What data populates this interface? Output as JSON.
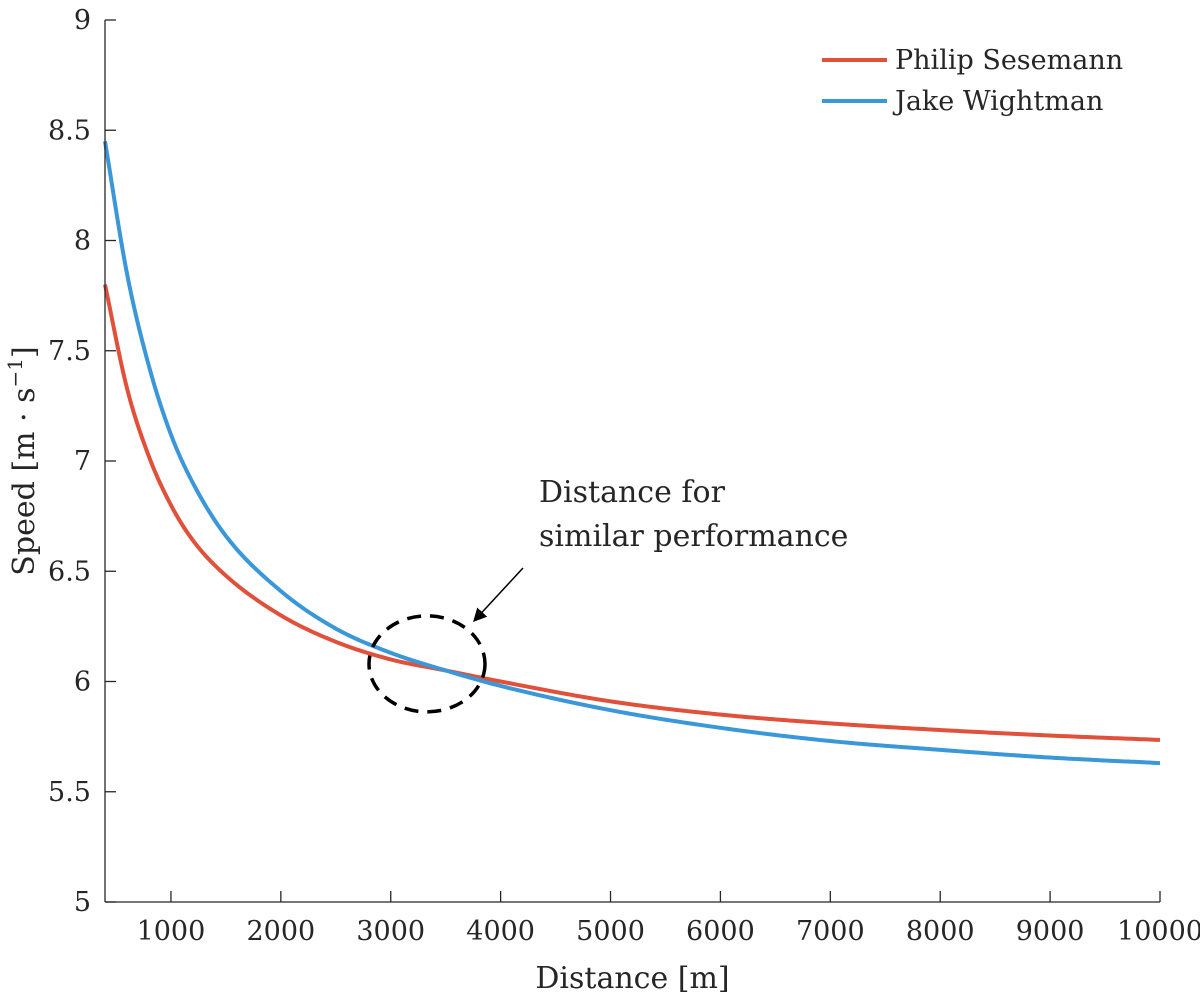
{
  "chart_data": {
    "type": "line",
    "title": "",
    "xlabel": "Distance [m]",
    "ylabel_main": "Speed [m · s",
    "ylabel_sup": "−1",
    "ylabel_close": "]",
    "xlim": [
      400,
      10000
    ],
    "ylim": [
      5,
      9
    ],
    "xticks": [
      1000,
      2000,
      3000,
      4000,
      5000,
      6000,
      7000,
      8000,
      9000,
      10000
    ],
    "yticks": [
      5,
      5.5,
      6,
      6.5,
      7,
      7.5,
      8,
      8.5,
      9
    ],
    "ytick_labels": [
      "5",
      "5.5",
      "6",
      "6.5",
      "7",
      "7.5",
      "8",
      "8.5",
      "9"
    ],
    "grid": false,
    "legend_position": "top-right",
    "series": [
      {
        "name": "Philip Sesemann",
        "color": "#e0503a",
        "x": [
          400,
          600,
          800,
          1000,
          1200,
          1500,
          2000,
          2500,
          3000,
          3500,
          4000,
          5000,
          6000,
          7000,
          8000,
          9000,
          10000
        ],
        "y": [
          7.8,
          7.33,
          7.02,
          6.8,
          6.64,
          6.48,
          6.3,
          6.18,
          6.1,
          6.05,
          6.0,
          5.91,
          5.85,
          5.81,
          5.78,
          5.755,
          5.735
        ]
      },
      {
        "name": "Jake Wightman",
        "color": "#3a97d8",
        "x": [
          400,
          600,
          800,
          1000,
          1200,
          1500,
          2000,
          2500,
          3000,
          3500,
          4000,
          5000,
          6000,
          7000,
          8000,
          9000,
          10000
        ],
        "y": [
          8.45,
          7.85,
          7.43,
          7.12,
          6.9,
          6.66,
          6.41,
          6.24,
          6.13,
          6.05,
          5.98,
          5.87,
          5.79,
          5.73,
          5.69,
          5.655,
          5.63
        ]
      }
    ],
    "annotation": {
      "lines": [
        "Distance for",
        "similar performance"
      ],
      "circle_center": [
        3330,
        6.08
      ]
    }
  }
}
